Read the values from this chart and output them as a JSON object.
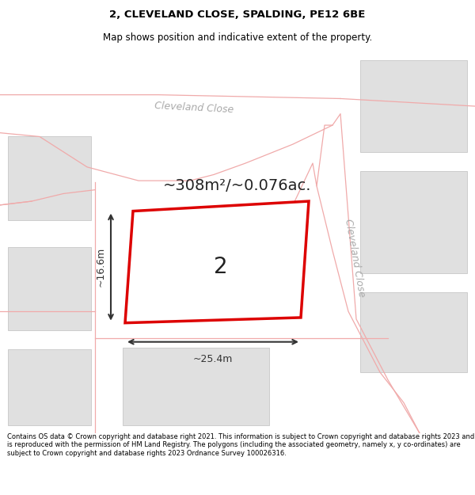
{
  "title": "2, CLEVELAND CLOSE, SPALDING, PE12 6BE",
  "subtitle": "Map shows position and indicative extent of the property.",
  "footer": "Contains OS data © Crown copyright and database right 2021. This information is subject to Crown copyright and database rights 2023 and is reproduced with the permission of HM Land Registry. The polygons (including the associated geometry, namely x, y co-ordinates) are subject to Crown copyright and database rights 2023 Ordnance Survey 100026316.",
  "area_label": "~308m²/~0.076ac.",
  "plot_number": "2",
  "dim_width": "~25.4m",
  "dim_height": "~16.6m",
  "map_bg": "#f5f5f5",
  "road_fill": "#ffffff",
  "road_line_color": "#f0aaaa",
  "highlight_edge": "#dd0000",
  "neighbor_fill": "#e0e0e0",
  "neighbor_edge": "#cccccc",
  "road_label1": "Cleveland Close",
  "road_label2": "Cleveland Close",
  "label_color": "#aaaaaa",
  "dim_color": "#333333",
  "area_text_color": "#222222"
}
